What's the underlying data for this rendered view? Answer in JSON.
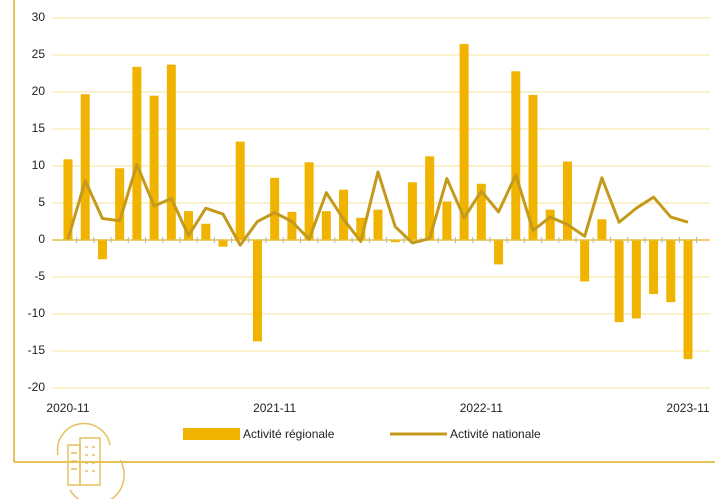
{
  "chart_data": {
    "type": "bar_line",
    "categories": [
      "2020-11",
      null,
      null,
      null,
      null,
      null,
      null,
      null,
      null,
      null,
      null,
      null,
      "2021-11",
      null,
      null,
      null,
      null,
      null,
      null,
      null,
      null,
      null,
      null,
      null,
      "2022-11",
      null,
      null,
      null,
      null,
      null,
      null,
      null,
      null,
      null,
      null,
      null,
      "2023-11"
    ],
    "series": [
      {
        "name": "Activité régionale",
        "type": "bar",
        "color": "#f0b400",
        "values": [
          10.9,
          19.7,
          -2.6,
          9.7,
          23.4,
          19.5,
          23.7,
          3.9,
          2.2,
          -0.9,
          13.3,
          -13.7,
          8.4,
          3.8,
          10.5,
          3.9,
          6.8,
          3.0,
          4.1,
          -0.3,
          7.8,
          11.3,
          5.2,
          26.5,
          7.6,
          -3.3,
          22.8,
          19.6,
          4.1,
          10.6,
          -5.6,
          2.8,
          -11.1,
          -10.6,
          -7.3,
          -8.4,
          -16.1
        ]
      },
      {
        "name": "Activité nationale",
        "type": "line",
        "color": "#c49a1c",
        "values": [
          0.1,
          8.0,
          2.9,
          2.6,
          10.2,
          4.6,
          5.6,
          0.6,
          4.3,
          3.5,
          -0.7,
          2.5,
          3.7,
          2.5,
          0.1,
          6.4,
          2.8,
          -0.2,
          9.2,
          1.8,
          -0.4,
          0.2,
          8.3,
          3.0,
          6.6,
          3.8,
          8.8,
          1.3,
          3.1,
          2.1,
          0.5,
          8.4,
          2.4,
          4.3,
          5.8,
          3.1,
          2.4
        ]
      }
    ],
    "ylim": [
      -20,
      30
    ],
    "yticks": [
      -20,
      -15,
      -10,
      -5,
      0,
      5,
      10,
      15,
      20,
      25,
      30
    ],
    "grid": true,
    "legend": "bottom"
  }
}
